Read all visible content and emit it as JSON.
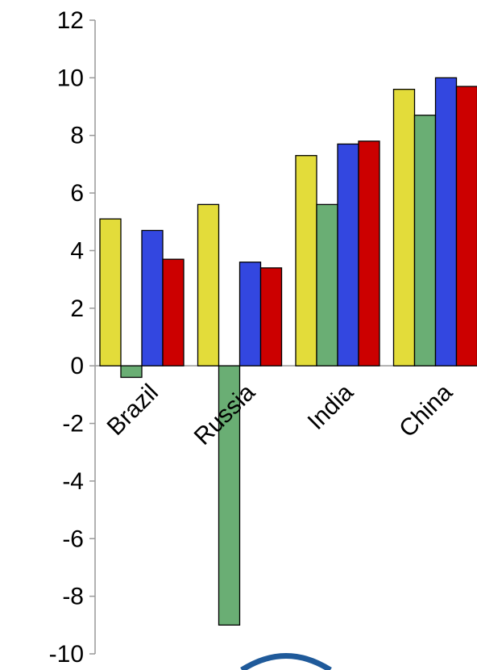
{
  "chart_data": {
    "type": "bar",
    "title": "",
    "xlabel": "",
    "ylabel": "",
    "ylim": [
      -10,
      12
    ],
    "yticks": [
      12,
      10,
      8,
      6,
      4,
      2,
      0,
      -2,
      -4,
      -6,
      -8,
      -10
    ],
    "grid": false,
    "legend": "none",
    "categories": [
      "Brazil",
      "Russia",
      "India",
      "China"
    ],
    "series": [
      {
        "color": "#e3dc3a",
        "values": [
          5.1,
          5.6,
          7.3,
          9.6
        ]
      },
      {
        "color": "#6aae74",
        "values": [
          -0.4,
          -9.0,
          5.6,
          8.7
        ]
      },
      {
        "color": "#3347e0",
        "values": [
          4.7,
          3.6,
          7.7,
          10.0
        ]
      },
      {
        "color": "#cc0000",
        "values": [
          3.7,
          3.4,
          7.8,
          9.7
        ]
      }
    ]
  }
}
